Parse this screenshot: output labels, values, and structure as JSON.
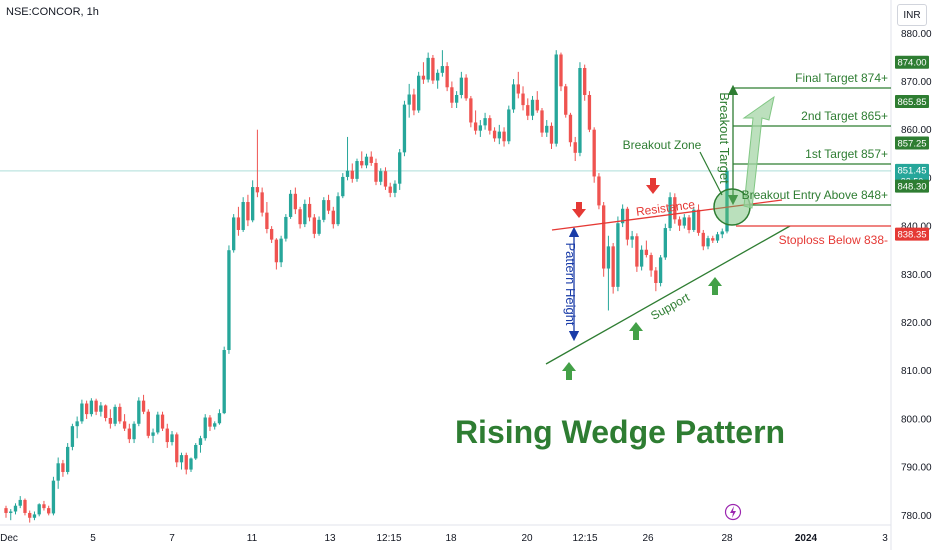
{
  "header": {
    "symbol": "NSE:CONCOR, 1h",
    "currency": "INR"
  },
  "chart_data": {
    "type": "candlestick",
    "title": "Rising Wedge Pattern",
    "ylim": [
      778,
      884
    ],
    "y_ticks": [
      780,
      790,
      800,
      810,
      820,
      830,
      840,
      850,
      860,
      870,
      880
    ],
    "x_tick_labels": [
      "Dec",
      "5",
      "7",
      "11",
      "13",
      "12:15",
      "18",
      "20",
      "12:15",
      "26",
      "28",
      "2024",
      "3"
    ],
    "price_tags": [
      {
        "value": 874.0,
        "label": "874.00",
        "kind": "target"
      },
      {
        "value": 865.85,
        "label": "865.85",
        "kind": "target"
      },
      {
        "value": 857.25,
        "label": "857.25",
        "kind": "target"
      },
      {
        "value": 851.45,
        "label": "851.45",
        "sub": "32:50",
        "kind": "last"
      },
      {
        "value": 848.3,
        "label": "848.30",
        "kind": "target"
      },
      {
        "value": 838.35,
        "label": "838.35",
        "kind": "stop"
      }
    ],
    "annotations": {
      "final_target": "Final Target 874+",
      "second_target": "2nd Target 865+",
      "first_target": "1st Target 857+",
      "breakout_entry": "Breakout Entry Above 848+",
      "stoploss": "Stoploss Below 838-",
      "breakout_zone": "Breakout Zone",
      "breakout_target": "Breakout Target",
      "resistance": "Resistance",
      "support": "Support",
      "pattern_height": "Pattern Height"
    },
    "candles": [
      [
        781.5,
        782.0,
        779.5,
        780.5
      ],
      [
        780.5,
        781.3,
        779.0,
        780.8
      ],
      [
        780.8,
        782.5,
        780.2,
        782.0
      ],
      [
        782.0,
        784.0,
        781.5,
        783.2
      ],
      [
        783.2,
        783.5,
        780.0,
        780.5
      ],
      [
        780.5,
        781.0,
        778.5,
        779.5
      ],
      [
        779.5,
        780.8,
        779.0,
        780.2
      ],
      [
        780.2,
        782.5,
        779.8,
        782.3
      ],
      [
        782.3,
        783.0,
        781.0,
        781.5
      ],
      [
        781.5,
        782.0,
        780.0,
        780.4
      ],
      [
        780.4,
        788.0,
        780.0,
        787.2
      ],
      [
        787.2,
        792.0,
        785.5,
        790.8
      ],
      [
        790.8,
        791.5,
        788.0,
        789.0
      ],
      [
        789.0,
        795.0,
        788.5,
        794.2
      ],
      [
        794.2,
        799.0,
        793.5,
        798.5
      ],
      [
        798.5,
        800.5,
        796.0,
        799.5
      ],
      [
        799.5,
        804.0,
        799.0,
        803.2
      ],
      [
        803.2,
        803.8,
        800.0,
        801.0
      ],
      [
        801.0,
        804.3,
        800.5,
        803.8
      ],
      [
        803.8,
        804.2,
        800.8,
        801.5
      ],
      [
        801.5,
        803.5,
        800.5,
        802.8
      ],
      [
        802.8,
        803.0,
        799.5,
        800.2
      ],
      [
        800.2,
        802.0,
        798.0,
        799.0
      ],
      [
        799.0,
        803.0,
        798.5,
        802.5
      ],
      [
        802.5,
        803.2,
        799.0,
        799.5
      ],
      [
        799.5,
        801.0,
        797.5,
        798.0
      ],
      [
        798.0,
        799.0,
        795.0,
        795.8
      ],
      [
        795.8,
        799.5,
        795.0,
        799.0
      ],
      [
        799.0,
        804.5,
        798.5,
        803.8
      ],
      [
        803.8,
        805.0,
        801.0,
        801.5
      ],
      [
        801.5,
        802.0,
        796.0,
        796.5
      ],
      [
        796.5,
        798.0,
        795.0,
        797.2
      ],
      [
        797.2,
        801.5,
        796.8,
        800.9
      ],
      [
        800.9,
        801.5,
        797.5,
        798.0
      ],
      [
        798.0,
        799.0,
        794.0,
        795.2
      ],
      [
        795.2,
        797.5,
        794.5,
        796.8
      ],
      [
        796.8,
        797.2,
        790.0,
        791.0
      ],
      [
        791.0,
        793.0,
        789.5,
        792.5
      ],
      [
        792.5,
        793.0,
        788.5,
        789.5
      ],
      [
        789.5,
        792.0,
        789.0,
        791.8
      ],
      [
        791.8,
        795.0,
        791.5,
        794.6
      ],
      [
        794.6,
        796.5,
        793.0,
        796.0
      ],
      [
        796.0,
        801.0,
        795.5,
        800.3
      ],
      [
        800.3,
        800.8,
        797.5,
        798.4
      ],
      [
        798.4,
        799.5,
        797.8,
        799.1
      ],
      [
        799.1,
        802.0,
        798.8,
        801.2
      ],
      [
        801.2,
        815.0,
        801.0,
        814.3
      ],
      [
        814.3,
        836.0,
        813.5,
        835.0
      ],
      [
        835.0,
        842.5,
        834.5,
        841.8
      ],
      [
        841.8,
        844.0,
        838.0,
        839.2
      ],
      [
        839.2,
        846.0,
        838.8,
        845.0
      ],
      [
        845.0,
        846.5,
        840.0,
        841.2
      ],
      [
        841.2,
        849.5,
        840.8,
        848.1
      ],
      [
        848.1,
        860.0,
        846.0,
        847.0
      ],
      [
        847.0,
        848.0,
        842.0,
        842.8
      ],
      [
        842.8,
        845.0,
        838.5,
        839.4
      ],
      [
        839.4,
        840.0,
        836.5,
        837.2
      ],
      [
        837.2,
        837.5,
        831.0,
        832.5
      ],
      [
        832.5,
        838.0,
        831.5,
        837.4
      ],
      [
        837.4,
        842.5,
        836.8,
        841.9
      ],
      [
        841.9,
        847.5,
        841.5,
        846.7
      ],
      [
        846.7,
        848.0,
        842.5,
        843.5
      ],
      [
        843.5,
        844.0,
        839.5,
        840.4
      ],
      [
        840.4,
        845.5,
        839.8,
        844.6
      ],
      [
        844.6,
        846.0,
        841.0,
        841.8
      ],
      [
        841.8,
        842.5,
        837.5,
        838.4
      ],
      [
        838.4,
        842.0,
        838.0,
        841.3
      ],
      [
        841.3,
        846.0,
        840.8,
        845.4
      ],
      [
        845.4,
        846.5,
        842.5,
        843.2
      ],
      [
        843.2,
        844.0,
        839.5,
        840.4
      ],
      [
        840.4,
        847.0,
        840.0,
        846.2
      ],
      [
        846.2,
        851.0,
        845.8,
        850.2
      ],
      [
        850.2,
        858.5,
        849.5,
        851.5
      ],
      [
        851.5,
        853.0,
        849.0,
        849.8
      ],
      [
        849.8,
        854.0,
        849.2,
        853.5
      ],
      [
        853.5,
        855.5,
        852.0,
        852.6
      ],
      [
        852.6,
        855.0,
        852.0,
        854.4
      ],
      [
        854.4,
        855.5,
        852.5,
        853.1
      ],
      [
        853.1,
        854.0,
        848.5,
        849.2
      ],
      [
        849.2,
        852.0,
        848.5,
        851.4
      ],
      [
        851.4,
        852.2,
        847.5,
        848.2
      ],
      [
        848.2,
        849.0,
        846.0,
        846.9
      ],
      [
        846.9,
        849.5,
        846.0,
        848.8
      ],
      [
        848.8,
        856.0,
        847.5,
        855.3
      ],
      [
        855.3,
        866.0,
        854.5,
        865.2
      ],
      [
        865.2,
        869.5,
        862.5,
        867.3
      ],
      [
        867.3,
        868.5,
        863.0,
        864.0
      ],
      [
        864.0,
        872.0,
        863.5,
        871.2
      ],
      [
        871.2,
        874.0,
        869.5,
        870.4
      ],
      [
        870.4,
        876.0,
        869.8,
        874.9
      ],
      [
        874.9,
        875.5,
        869.5,
        870.2
      ],
      [
        870.2,
        872.5,
        868.5,
        871.8
      ],
      [
        871.8,
        876.5,
        871.0,
        873.2
      ],
      [
        873.2,
        874.0,
        868.0,
        868.8
      ],
      [
        868.8,
        870.0,
        864.5,
        865.6
      ],
      [
        865.6,
        868.0,
        864.5,
        867.2
      ],
      [
        867.2,
        872.0,
        866.5,
        870.8
      ],
      [
        870.8,
        871.5,
        866.0,
        866.5
      ],
      [
        866.5,
        867.0,
        860.5,
        861.5
      ],
      [
        861.5,
        864.0,
        859.0,
        859.8
      ],
      [
        859.8,
        862.0,
        858.5,
        860.9
      ],
      [
        860.9,
        863.5,
        860.0,
        862.4
      ],
      [
        862.4,
        863.0,
        859.0,
        859.8
      ],
      [
        859.8,
        860.5,
        857.5,
        858.2
      ],
      [
        858.2,
        861.0,
        857.0,
        859.6
      ],
      [
        859.6,
        860.5,
        856.5,
        857.6
      ],
      [
        857.6,
        865.0,
        857.0,
        864.2
      ],
      [
        864.2,
        870.5,
        863.5,
        869.4
      ],
      [
        869.4,
        872.0,
        866.5,
        867.5
      ],
      [
        867.5,
        869.0,
        864.0,
        865.1
      ],
      [
        865.1,
        866.5,
        862.0,
        862.9
      ],
      [
        862.9,
        867.0,
        862.0,
        866.2
      ],
      [
        866.2,
        868.0,
        863.5,
        864.0
      ],
      [
        864.0,
        864.5,
        858.5,
        859.4
      ],
      [
        859.4,
        862.0,
        858.5,
        860.8
      ],
      [
        860.8,
        861.5,
        856.0,
        857.1
      ],
      [
        857.1,
        876.5,
        856.5,
        875.6
      ],
      [
        875.6,
        876.0,
        868.0,
        869.0
      ],
      [
        869.0,
        869.5,
        862.5,
        863.1
      ],
      [
        863.1,
        863.5,
        856.5,
        857.4
      ],
      [
        857.4,
        858.5,
        853.5,
        855.2
      ],
      [
        855.2,
        874.0,
        854.5,
        872.8
      ],
      [
        872.8,
        873.5,
        866.0,
        867.2
      ],
      [
        867.2,
        868.0,
        859.5,
        860.0
      ],
      [
        860.0,
        860.5,
        849.0,
        850.3
      ],
      [
        850.3,
        851.0,
        843.5,
        844.3
      ],
      [
        844.3,
        845.0,
        829.5,
        831.2
      ],
      [
        831.2,
        838.0,
        822.5,
        835.8
      ],
      [
        835.8,
        836.5,
        826.0,
        827.4
      ],
      [
        827.4,
        842.0,
        826.5,
        840.6
      ],
      [
        840.6,
        844.5,
        839.8,
        843.6
      ],
      [
        843.6,
        844.0,
        836.0,
        837.2
      ],
      [
        837.2,
        839.0,
        835.5,
        837.9
      ],
      [
        837.9,
        838.5,
        830.5,
        831.6
      ],
      [
        831.6,
        836.0,
        830.8,
        835.1
      ],
      [
        835.1,
        837.0,
        833.5,
        834.0
      ],
      [
        834.0,
        834.5,
        829.5,
        830.8
      ],
      [
        830.8,
        831.5,
        826.5,
        828.2
      ],
      [
        828.2,
        834.0,
        827.5,
        833.5
      ],
      [
        833.5,
        840.5,
        833.0,
        839.6
      ],
      [
        839.6,
        847.0,
        839.0,
        846.0
      ],
      [
        846.0,
        846.8,
        840.5,
        841.4
      ],
      [
        841.4,
        842.0,
        839.0,
        840.1
      ],
      [
        840.1,
        842.5,
        839.5,
        841.8
      ],
      [
        841.8,
        842.3,
        838.5,
        839.2
      ],
      [
        839.2,
        844.0,
        838.8,
        843.4
      ],
      [
        843.4,
        844.5,
        838.0,
        838.6
      ],
      [
        838.6,
        839.2,
        835.0,
        835.8
      ],
      [
        835.8,
        838.0,
        835.2,
        837.5
      ],
      [
        837.5,
        838.0,
        836.5,
        837.0
      ],
      [
        837.0,
        838.8,
        836.5,
        838.3
      ],
      [
        838.3,
        839.5,
        837.5,
        838.9
      ],
      [
        838.9,
        852.0,
        838.5,
        851.45
      ]
    ]
  }
}
